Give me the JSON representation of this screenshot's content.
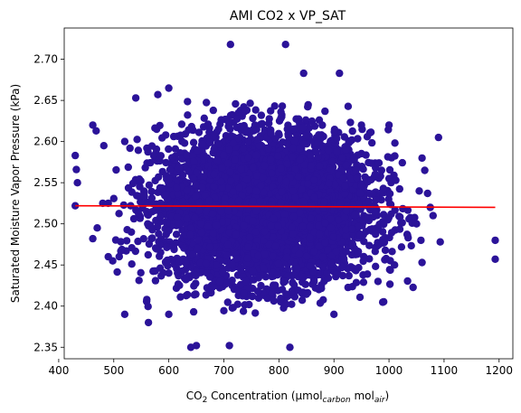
{
  "chart_data": {
    "type": "scatter",
    "title": "AMI CO2 x VP_SAT",
    "xlabel": {
      "prefix": "CO",
      "prefix_sub": "2",
      "middle": " Concentration (µmol",
      "sub1": "carbon",
      "middle2": " mol",
      "sub2": "air",
      "suffix": ")"
    },
    "ylabel": "Saturated Moisture Vapor Pressure (kPa)",
    "xlim": [
      410,
      1225
    ],
    "ylim": [
      2.336,
      2.738
    ],
    "xticks": [
      400,
      500,
      600,
      700,
      800,
      900,
      1000,
      1100,
      1200
    ],
    "xtick_labels": [
      "400",
      "500",
      "600",
      "700",
      "800",
      "900",
      "1000",
      "1100",
      "1200"
    ],
    "yticks": [
      2.35,
      2.4,
      2.45,
      2.5,
      2.55,
      2.6,
      2.65,
      2.7
    ],
    "ytick_labels": [
      "2.35",
      "2.40",
      "2.45",
      "2.50",
      "2.55",
      "2.60",
      "2.65",
      "2.70"
    ],
    "grid": false,
    "colors": {
      "points": "#2b1399",
      "trend": "#ff0000"
    },
    "cloud": {
      "x_center": 775,
      "x_spread": 95,
      "y_center": 2.52,
      "y_spread": 0.045
    },
    "outlier_points": [
      {
        "x": 430,
        "y": 2.583
      },
      {
        "x": 432,
        "y": 2.566
      },
      {
        "x": 434,
        "y": 2.55
      },
      {
        "x": 430,
        "y": 2.522
      },
      {
        "x": 462,
        "y": 2.62
      },
      {
        "x": 468,
        "y": 2.613
      },
      {
        "x": 482,
        "y": 2.595
      },
      {
        "x": 462,
        "y": 2.482
      },
      {
        "x": 470,
        "y": 2.495
      },
      {
        "x": 490,
        "y": 2.46
      },
      {
        "x": 498,
        "y": 2.455
      },
      {
        "x": 520,
        "y": 2.39
      },
      {
        "x": 540,
        "y": 2.653
      },
      {
        "x": 560,
        "y": 2.408
      },
      {
        "x": 563,
        "y": 2.38
      },
      {
        "x": 640,
        "y": 2.35
      },
      {
        "x": 650,
        "y": 2.352
      },
      {
        "x": 710,
        "y": 2.352
      },
      {
        "x": 712,
        "y": 2.718
      },
      {
        "x": 812,
        "y": 2.718
      },
      {
        "x": 820,
        "y": 2.35
      },
      {
        "x": 845,
        "y": 2.683
      },
      {
        "x": 910,
        "y": 2.683
      },
      {
        "x": 1060,
        "y": 2.58
      },
      {
        "x": 1065,
        "y": 2.565
      },
      {
        "x": 1055,
        "y": 2.54
      },
      {
        "x": 1070,
        "y": 2.537
      },
      {
        "x": 1075,
        "y": 2.52
      },
      {
        "x": 1090,
        "y": 2.605
      },
      {
        "x": 1093,
        "y": 2.478
      },
      {
        "x": 1060,
        "y": 2.453
      },
      {
        "x": 1058,
        "y": 2.48
      },
      {
        "x": 1050,
        "y": 2.5
      },
      {
        "x": 1080,
        "y": 2.51
      },
      {
        "x": 1193,
        "y": 2.48
      },
      {
        "x": 1193,
        "y": 2.457
      },
      {
        "x": 490,
        "y": 2.525
      },
      {
        "x": 480,
        "y": 2.525
      },
      {
        "x": 520,
        "y": 2.6
      },
      {
        "x": 600,
        "y": 2.665
      },
      {
        "x": 580,
        "y": 2.657
      },
      {
        "x": 950,
        "y": 2.62
      },
      {
        "x": 1000,
        "y": 2.62
      },
      {
        "x": 1010,
        "y": 2.45
      },
      {
        "x": 980,
        "y": 2.43
      },
      {
        "x": 600,
        "y": 2.39
      },
      {
        "x": 900,
        "y": 2.39
      },
      {
        "x": 1000,
        "y": 2.555
      }
    ],
    "trend_line": {
      "x": [
        430,
        1193
      ],
      "y": [
        2.522,
        2.52
      ]
    }
  }
}
